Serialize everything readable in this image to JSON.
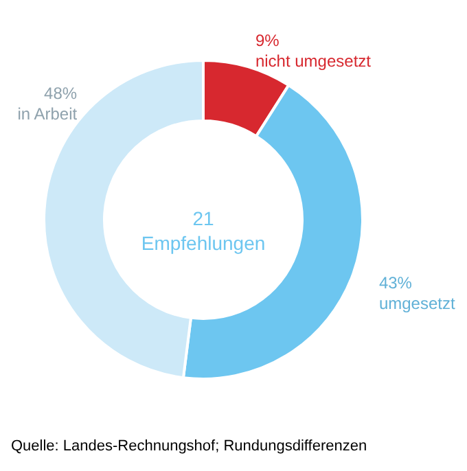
{
  "chart_data": {
    "type": "donut",
    "categories": [
      "nicht umgesetzt",
      "umgesetzt",
      "in Arbeit"
    ],
    "values": [
      9,
      43,
      48
    ],
    "colors": [
      "#d7282f",
      "#6dc6f0",
      "#cde9f8"
    ],
    "value_labels": [
      "9%",
      "43%",
      "48%"
    ],
    "annotations": [
      "21\nEmpfehlungen",
      "Quelle: Landes-Rechnungshof; Rundungsdifferenzen"
    ]
  }
}
